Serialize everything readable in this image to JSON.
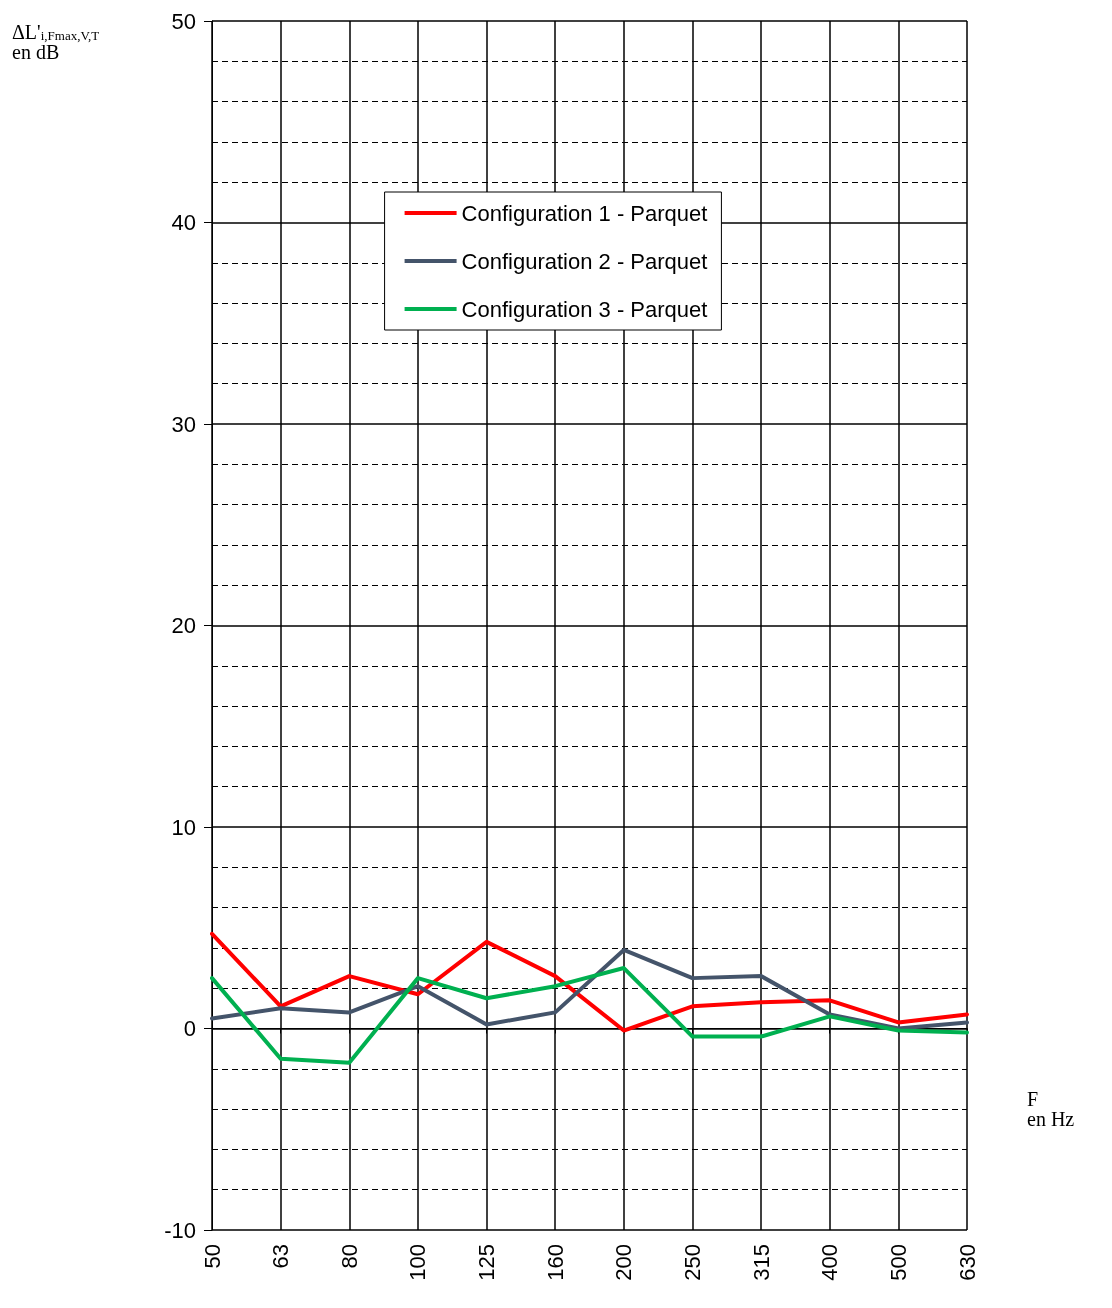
{
  "chart_data": {
    "type": "line",
    "ylabel": "ΔL'$_{i,Fmax,V,T}$\nen dB",
    "xlabel": "F\nen Hz",
    "categories": [
      "50",
      "63",
      "80",
      "100",
      "125",
      "160",
      "200",
      "250",
      "315",
      "400",
      "500",
      "630"
    ],
    "series": [
      {
        "name": "Configuration 1 - Parquet",
        "color": "#ff0000",
        "values": [
          4.7,
          1.1,
          2.6,
          1.7,
          4.3,
          2.6,
          -0.1,
          1.1,
          1.3,
          1.4,
          0.3,
          0.7
        ]
      },
      {
        "name": "Configuration 2 - Parquet",
        "color": "#44546a",
        "values": [
          0.5,
          1.0,
          0.8,
          2.1,
          0.2,
          0.8,
          3.9,
          2.5,
          2.6,
          0.7,
          0.0,
          0.3
        ]
      },
      {
        "name": "Configuration 3 - Parquet",
        "color": "#00b050",
        "values": [
          2.5,
          -1.5,
          -1.7,
          2.5,
          1.5,
          2.1,
          3.0,
          -0.4,
          -0.4,
          0.6,
          -0.1,
          -0.2
        ]
      }
    ],
    "ylim": [
      -10,
      50
    ],
    "yticks": [
      -10,
      0,
      10,
      20,
      30,
      40,
      50
    ],
    "grid": true,
    "legend": "top",
    "marker": "none",
    "line_style": "solid"
  }
}
